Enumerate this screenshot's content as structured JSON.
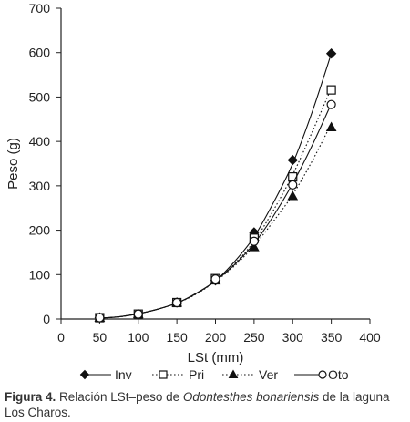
{
  "chart_data": {
    "type": "line",
    "xlabel": "LSt (mm)",
    "ylabel": "Peso (g)",
    "xlim": [
      0,
      400
    ],
    "ylim": [
      0,
      700
    ],
    "x_ticks": [
      "0",
      "50",
      "100",
      "150",
      "200",
      "250",
      "300",
      "350",
      "400"
    ],
    "y_ticks": [
      "0",
      "100",
      "200",
      "300",
      "400",
      "500",
      "600",
      "700"
    ],
    "grid": false,
    "legend_position": "bottom",
    "x": [
      50,
      100,
      150,
      200,
      250,
      300,
      350
    ],
    "series": [
      {
        "name": "Inv",
        "marker": "filled-diamond",
        "line": "solid",
        "values": [
          3,
          11,
          37,
          87,
          195,
          358,
          598
        ],
        "fit": [
          [
            50,
            2
          ],
          [
            75,
            5
          ],
          [
            100,
            12
          ],
          [
            125,
            22
          ],
          [
            150,
            36
          ],
          [
            175,
            58
          ],
          [
            200,
            86
          ],
          [
            225,
            130
          ],
          [
            250,
            185
          ],
          [
            275,
            262
          ],
          [
            300,
            350
          ],
          [
            325,
            465
          ],
          [
            350,
            598
          ]
        ]
      },
      {
        "name": "Pri",
        "marker": "open-square",
        "line": "dotted",
        "values": [
          3,
          11,
          37,
          91,
          182,
          320,
          516
        ],
        "fit": [
          [
            50,
            2
          ],
          [
            75,
            5
          ],
          [
            100,
            12
          ],
          [
            125,
            22
          ],
          [
            150,
            36
          ],
          [
            175,
            57
          ],
          [
            200,
            86
          ],
          [
            225,
            125
          ],
          [
            250,
            175
          ],
          [
            275,
            245
          ],
          [
            300,
            325
          ],
          [
            325,
            420
          ],
          [
            350,
            520
          ]
        ]
      },
      {
        "name": "Ver",
        "marker": "filled-triangle",
        "line": "dotted",
        "values": [
          3,
          11,
          37,
          87,
          162,
          277,
          432
        ],
        "fit": [
          [
            50,
            2
          ],
          [
            75,
            5
          ],
          [
            100,
            12
          ],
          [
            125,
            22
          ],
          [
            150,
            36
          ],
          [
            175,
            56
          ],
          [
            200,
            85
          ],
          [
            225,
            120
          ],
          [
            250,
            165
          ],
          [
            275,
            220
          ],
          [
            300,
            280
          ],
          [
            325,
            355
          ],
          [
            350,
            440
          ]
        ]
      },
      {
        "name": "Oto",
        "marker": "open-circle",
        "line": "solid",
        "values": [
          3,
          11,
          37,
          90,
          175,
          302,
          483
        ],
        "fit": [
          [
            50,
            2
          ],
          [
            75,
            5
          ],
          [
            100,
            12
          ],
          [
            125,
            22
          ],
          [
            150,
            36
          ],
          [
            175,
            57
          ],
          [
            200,
            86
          ],
          [
            225,
            123
          ],
          [
            250,
            170
          ],
          [
            275,
            232
          ],
          [
            300,
            305
          ],
          [
            325,
            390
          ],
          [
            350,
            485
          ]
        ]
      }
    ]
  },
  "caption": {
    "label": "Figura 4.",
    "text_before": " Relación LSt–peso de ",
    "species": "Odontesthes bonariensis",
    "text_after": " de la laguna Los Charos."
  },
  "colors": {
    "ink": "#111111",
    "axis": "#222222"
  }
}
